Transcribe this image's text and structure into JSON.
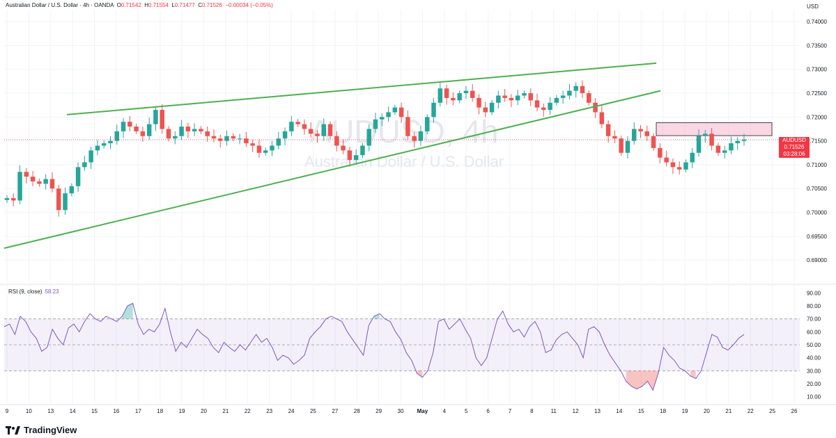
{
  "header": {
    "instrument": "Australian Dollar / U.S. Dollar · 4h · OANDA",
    "o_label": "O",
    "o_value": "0.71542",
    "h_label": "H",
    "h_value": "0.71554",
    "l_label": "L",
    "l_value": "0.71477",
    "c_label": "C",
    "c_value": "0.71526",
    "change": "−0.00034 (−0.05%)"
  },
  "watermark": {
    "symbol": "AUDUSD, 4h",
    "name": "Australian Dollar / U.S. Dollar"
  },
  "price_badge": {
    "symbol": "AUDUSD",
    "price": "0.71526",
    "countdown": "03:28:06"
  },
  "currency_label": "USD",
  "rsi_label": "RSI (9, close)",
  "rsi_value": "58.23",
  "brand": "TradingView",
  "colors": {
    "up": "#26a69a",
    "down": "#ef5350",
    "trendline": "#4caf50",
    "rsi": "#7e57c2",
    "zone": "#f8bbd0"
  },
  "chart_data": {
    "type": "candlestick",
    "y_axis": {
      "range": [
        0.6855,
        0.7425
      ],
      "ticks": [
        "0.74000",
        "0.73500",
        "0.73000",
        "0.72500",
        "0.72000",
        "0.71500",
        "0.71000",
        "0.70500",
        "0.70000",
        "0.69500",
        "0.69000"
      ]
    },
    "x_ticks": [
      "9",
      "10",
      "13",
      "14",
      "15",
      "16",
      "17",
      "18",
      "19",
      "20",
      "21",
      "22",
      "23",
      "24",
      "25",
      "27",
      "28",
      "29",
      "30",
      "May",
      "4",
      "5",
      "6",
      "7",
      "8",
      "11",
      "12",
      "13",
      "14",
      "15",
      "18",
      "19",
      "20",
      "21",
      "22",
      "25",
      "26"
    ],
    "closes": [
      0.703,
      0.7025,
      0.7085,
      0.7075,
      0.7065,
      0.706,
      0.707,
      0.705,
      0.7005,
      0.704,
      0.7055,
      0.7095,
      0.7105,
      0.713,
      0.714,
      0.7145,
      0.715,
      0.717,
      0.719,
      0.718,
      0.717,
      0.716,
      0.7185,
      0.7215,
      0.7175,
      0.7155,
      0.716,
      0.718,
      0.717,
      0.7175,
      0.717,
      0.716,
      0.7155,
      0.715,
      0.716,
      0.7155,
      0.7155,
      0.7145,
      0.714,
      0.7125,
      0.713,
      0.714,
      0.7155,
      0.717,
      0.719,
      0.7185,
      0.7175,
      0.7165,
      0.716,
      0.7185,
      0.716,
      0.714,
      0.713,
      0.711,
      0.712,
      0.714,
      0.7175,
      0.7195,
      0.72,
      0.721,
      0.722,
      0.72,
      0.716,
      0.715,
      0.717,
      0.72,
      0.723,
      0.726,
      0.724,
      0.7235,
      0.725,
      0.7255,
      0.724,
      0.722,
      0.721,
      0.723,
      0.7245,
      0.724,
      0.7235,
      0.7245,
      0.725,
      0.7235,
      0.722,
      0.7215,
      0.723,
      0.724,
      0.7245,
      0.7255,
      0.7265,
      0.725,
      0.723,
      0.721,
      0.7185,
      0.716,
      0.7155,
      0.7125,
      0.715,
      0.7175,
      0.717,
      0.716,
      0.7135,
      0.7115,
      0.7105,
      0.7095,
      0.709,
      0.7105,
      0.7125,
      0.716,
      0.7165,
      0.714,
      0.7125,
      0.713,
      0.7145,
      0.715,
      0.7153
    ],
    "trendlines": [
      {
        "name": "upper",
        "from": [
          0.7205
        ],
        "to": [
          0.7313
        ]
      },
      {
        "name": "lower",
        "from": [
          0.6925
        ],
        "to": [
          0.7255
        ]
      }
    ],
    "resistance_zone": {
      "high": 0.7188,
      "low": 0.7161
    },
    "current_price": 0.71526,
    "rsi": {
      "range": [
        5,
        95
      ],
      "ticks": [
        "90.00",
        "80.00",
        "70.00",
        "60.00",
        "50.00",
        "40.00",
        "30.00",
        "20.00",
        "10.00"
      ],
      "levels": [
        70,
        50,
        30
      ],
      "values": [
        64,
        66,
        58,
        72,
        68,
        60,
        55,
        45,
        48,
        62,
        55,
        50,
        63,
        66,
        60,
        68,
        74,
        70,
        68,
        72,
        70,
        68,
        72,
        80,
        82,
        66,
        58,
        62,
        60,
        66,
        78,
        60,
        45,
        52,
        48,
        55,
        62,
        58,
        55,
        48,
        44,
        52,
        48,
        45,
        50,
        46,
        52,
        58,
        52,
        55,
        48,
        38,
        42,
        40,
        35,
        38,
        42,
        55,
        60,
        64,
        70,
        72,
        70,
        68,
        60,
        54,
        48,
        42,
        65,
        72,
        74,
        70,
        68,
        60,
        54,
        44,
        38,
        28,
        25,
        30,
        44,
        68,
        70,
        62,
        66,
        70,
        62,
        55,
        40,
        34,
        40,
        55,
        70,
        76,
        66,
        60,
        62,
        56,
        64,
        68,
        60,
        44,
        46,
        54,
        58,
        60,
        55,
        50,
        40,
        62,
        64,
        60,
        50,
        42,
        36,
        30,
        22,
        18,
        16,
        18,
        22,
        15,
        28,
        48,
        42,
        38,
        32,
        30,
        26,
        24,
        30,
        44,
        58,
        56,
        48,
        46,
        50,
        55,
        58
      ]
    }
  }
}
